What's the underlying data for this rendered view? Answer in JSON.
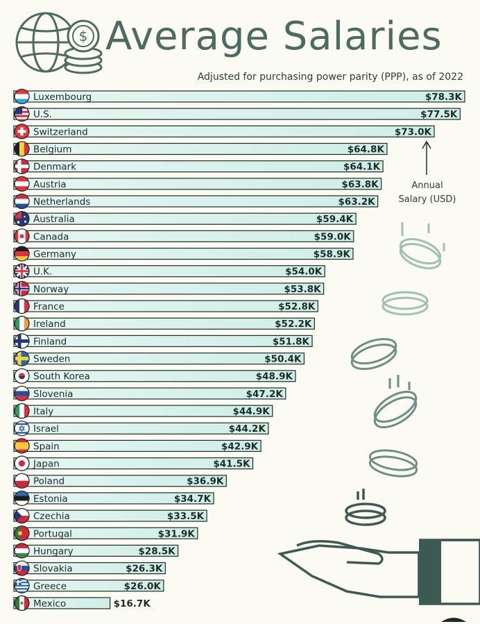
{
  "header": {
    "title": "Average Salaries",
    "subtitle": "Adjusted for purchasing power parity (PPP), as of 2022"
  },
  "annotation": {
    "line1": "Annual",
    "line2": "Salary (USD)"
  },
  "colors": {
    "bar_fill": "#cfeee6",
    "bar_fill_light": "#e6f6f1",
    "bar_stroke": "#1d2b28",
    "accent": "#4c6b62",
    "text": "#1d2b28"
  },
  "chart_data": {
    "type": "bar",
    "orientation": "horizontal",
    "xlim": [
      0,
      78.3
    ],
    "unit": "USD thousands",
    "categories": [
      "Luxembourg",
      "U.S.",
      "Switzerland",
      "Belgium",
      "Denmark",
      "Austria",
      "Netherlands",
      "Australia",
      "Canada",
      "Germany",
      "U.K.",
      "Norway",
      "France",
      "Ireland",
      "Finland",
      "Sweden",
      "South Korea",
      "Slovenia",
      "Italy",
      "Israel",
      "Spain",
      "Japan",
      "Poland",
      "Estonia",
      "Czechia",
      "Portugal",
      "Hungary",
      "Slovakia",
      "Greece",
      "Mexico"
    ],
    "values": [
      78.3,
      77.5,
      73.0,
      64.8,
      64.1,
      63.8,
      63.2,
      59.4,
      59.0,
      58.9,
      54.0,
      53.8,
      52.8,
      52.2,
      51.8,
      50.4,
      48.9,
      47.2,
      44.9,
      44.2,
      42.9,
      41.5,
      36.9,
      34.7,
      33.5,
      31.9,
      28.5,
      26.3,
      26.0,
      16.7
    ],
    "labels": [
      "$78.3K",
      "$77.5K",
      "$73.0K",
      "$64.8K",
      "$64.1K",
      "$63.8K",
      "$63.2K",
      "$59.4K",
      "$59.0K",
      "$58.9K",
      "$54.0K",
      "$53.8K",
      "$52.8K",
      "$52.2K",
      "$51.8K",
      "$50.4K",
      "$48.9K",
      "$47.2K",
      "$44.9K",
      "$44.2K",
      "$42.9K",
      "$41.5K",
      "$36.9K",
      "$34.7K",
      "$33.5K",
      "$31.9K",
      "$28.5K",
      "$26.3K",
      "$26.0K",
      "$16.7K"
    ],
    "flags": [
      "luxembourg-flag-icon",
      "us-flag-icon",
      "switzerland-flag-icon",
      "belgium-flag-icon",
      "denmark-flag-icon",
      "austria-flag-icon",
      "netherlands-flag-icon",
      "australia-flag-icon",
      "canada-flag-icon",
      "germany-flag-icon",
      "uk-flag-icon",
      "norway-flag-icon",
      "france-flag-icon",
      "ireland-flag-icon",
      "finland-flag-icon",
      "sweden-flag-icon",
      "south-korea-flag-icon",
      "slovenia-flag-icon",
      "italy-flag-icon",
      "israel-flag-icon",
      "spain-flag-icon",
      "japan-flag-icon",
      "poland-flag-icon",
      "estonia-flag-icon",
      "czechia-flag-icon",
      "portugal-flag-icon",
      "hungary-flag-icon",
      "slovakia-flag-icon",
      "greece-flag-icon",
      "mexico-flag-icon"
    ]
  }
}
